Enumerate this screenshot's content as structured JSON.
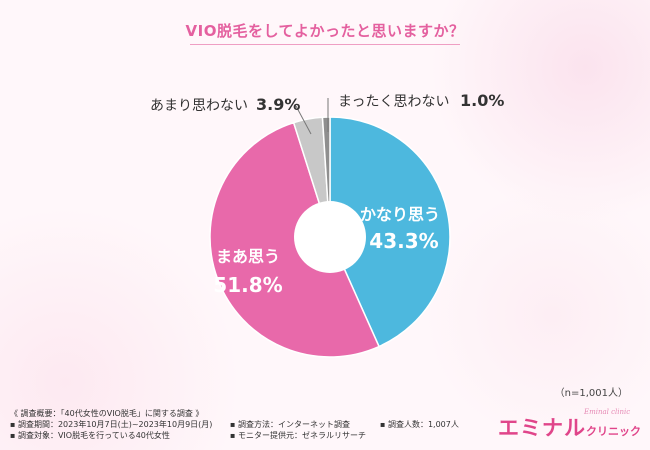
{
  "chart_data": {
    "type": "pie",
    "title": "VIO脱毛をしてよかったと思いますか？",
    "slices": [
      {
        "label": "かなり思う",
        "value": 43.3,
        "pct_text": "43.3%",
        "color": "#4db8de"
      },
      {
        "label": "まあ思う",
        "value": 51.8,
        "pct_text": "51.8%",
        "color": "#e869aa"
      },
      {
        "label": "あまり思わない",
        "value": 3.9,
        "pct_text": "3.9%",
        "color": "#c8c8c8"
      },
      {
        "label": "まったく思わない",
        "value": 1.0,
        "pct_text": "1.0%",
        "color": "#8f8f8f"
      }
    ],
    "donut": true,
    "sample_note": "（n=1,001人）"
  },
  "survey": {
    "overview": "《 調査概要：「40代女性のVIO脱毛」に関する調査 》",
    "period": "▪ 調査期間：2023年10月7日(土)~2023年10月9日(月)",
    "method": "▪ 調査方法：インターネット調査",
    "count": "▪ 調査人数：1,007人",
    "target": "▪ 調査対象：VIO脱毛を行っている40代女性",
    "provider": "▪ モニター提供元：ゼネラルリサーチ"
  },
  "brand": {
    "name": "エミナル",
    "sub": "クリニック",
    "tagline": "Eminal clinic"
  }
}
